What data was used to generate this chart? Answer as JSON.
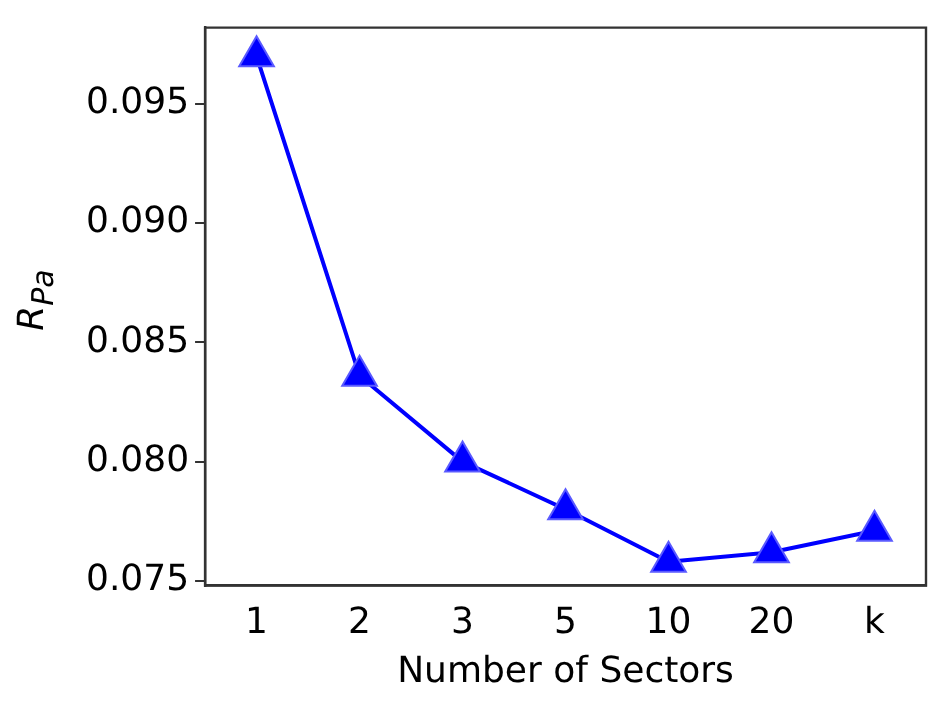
{
  "chart_data": {
    "type": "line",
    "xlabel": "Number of Sectors",
    "ylabel": "R$_{Pa}$",
    "categories": [
      "1",
      "2",
      "3",
      "5",
      "10",
      "20",
      "k"
    ],
    "series": [
      {
        "color": "#0000ff",
        "values": [
          0.097,
          0.0836,
          0.08,
          0.078,
          0.0758,
          0.0762,
          0.0771
        ]
      }
    ],
    "ylim": [
      0.0748,
      0.0982
    ],
    "yticks": [
      {
        "value": 0.075,
        "label": "0.075"
      },
      {
        "value": 0.08,
        "label": "0.080"
      },
      {
        "value": 0.085,
        "label": "0.085"
      },
      {
        "value": 0.09,
        "label": "0.090"
      },
      {
        "value": 0.095,
        "label": "0.095"
      }
    ],
    "marker": "triangle",
    "line_style": "solid",
    "grid": false,
    "legend": false
  }
}
